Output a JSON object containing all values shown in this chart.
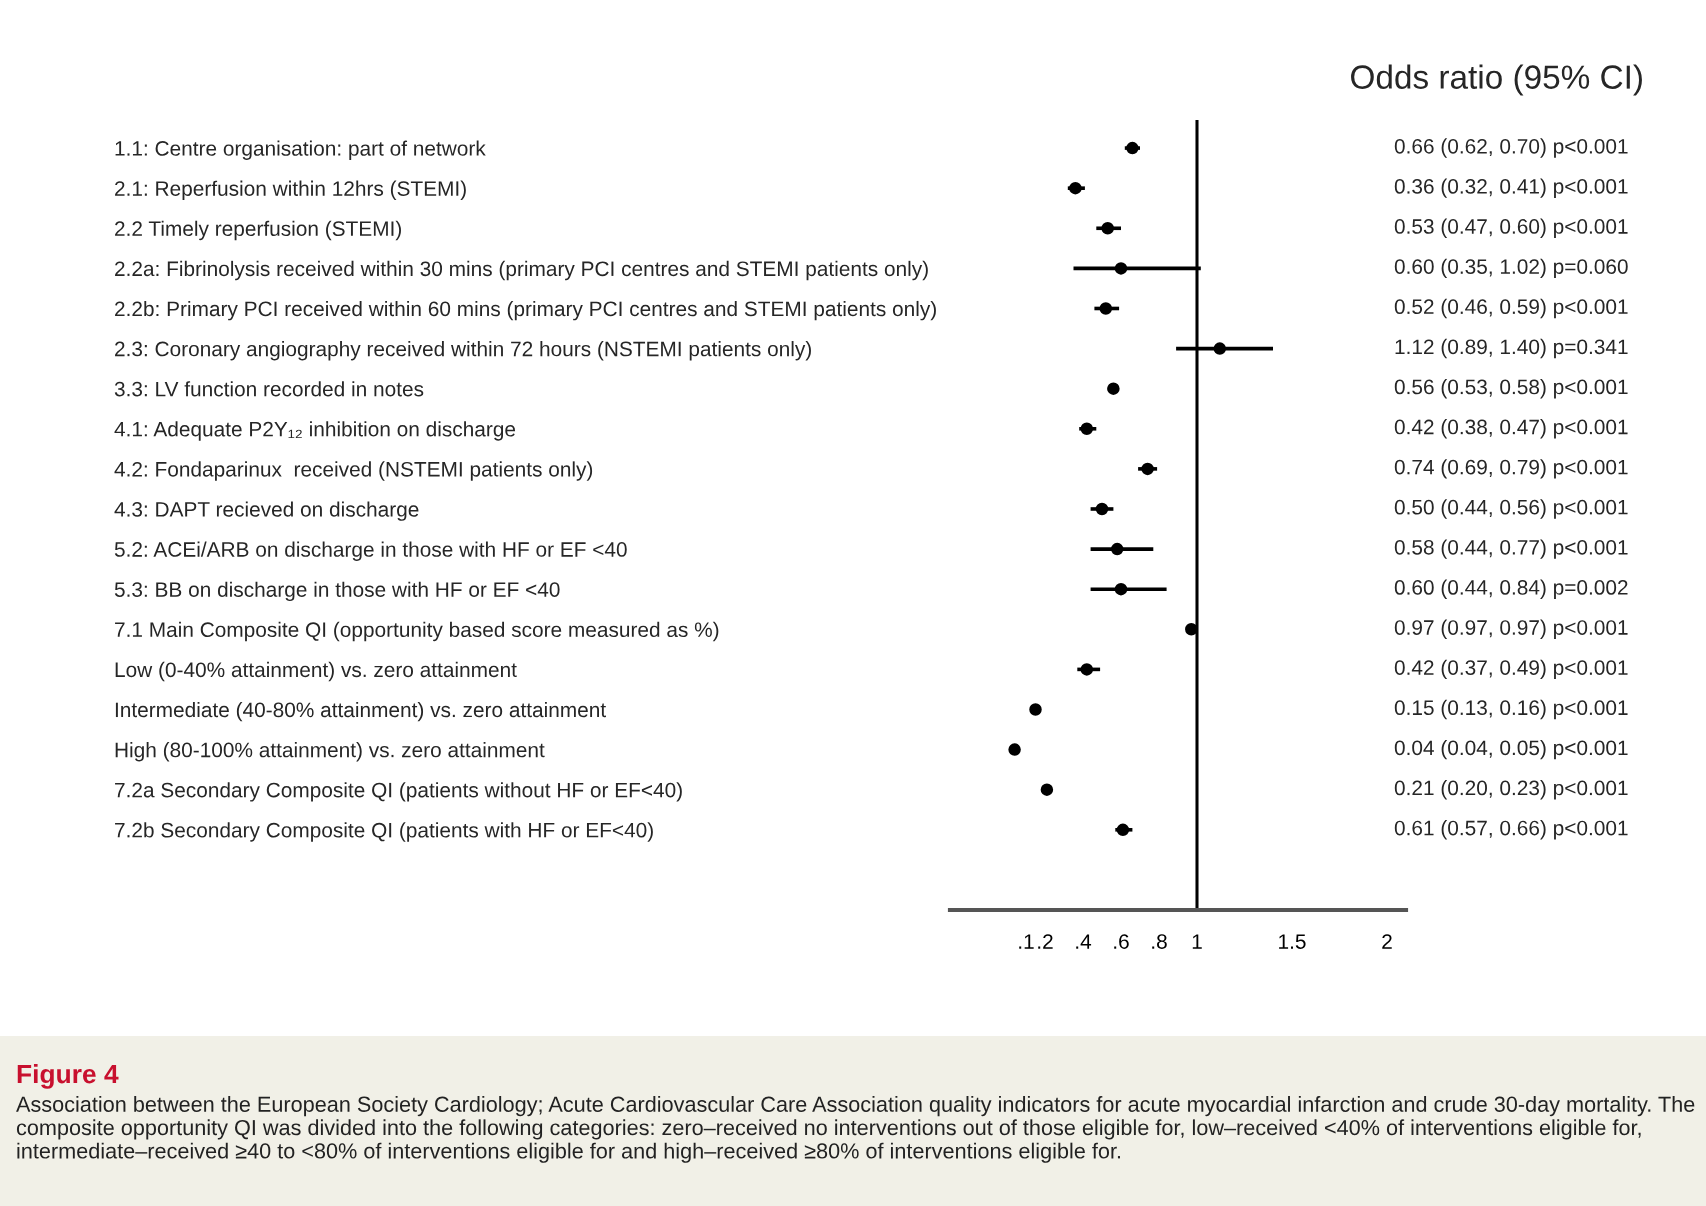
{
  "chart_data": {
    "type": "scatter",
    "orientation": "horizontal",
    "title": "Odds ratio (95% CI)",
    "categories": [
      "1.1: Centre organisation: part of network",
      "2.1: Reperfusion within 12hrs (STEMI)",
      "2.2 Timely reperfusion (STEMI)",
      "2.2a: Fibrinolysis received within 30 mins (primary PCI centres and STEMI patients only)",
      "2.2b: Primary PCI received within 60 mins (primary PCI centres and STEMI patients only)",
      "2.3: Coronary angiography received within 72 hours (NSTEMI patients only)",
      "3.3: LV function recorded in notes",
      "4.1: Adequate P2Y₁₂ inhibition on discharge",
      "4.2: Fondaparinux  received (NSTEMI patients only)",
      "4.3: DAPT recieved on discharge",
      "5.2: ACEi/ARB on discharge in those with HF or EF <40",
      "5.3: BB on discharge in those with HF or EF <40",
      "7.1 Main Composite QI (opportunity based score measured as %)",
      "Low (0-40% attainment) vs. zero attainment",
      "Intermediate (40-80% attainment) vs. zero attainment",
      "High (80-100% attainment) vs. zero attainment",
      "7.2a Secondary Composite QI (patients without HF or EF<40)",
      "7.2b Secondary Composite QI (patients with HF or EF<40)"
    ],
    "values": [
      0.66,
      0.36,
      0.53,
      0.6,
      0.52,
      1.12,
      0.56,
      0.42,
      0.74,
      0.5,
      0.58,
      0.6,
      0.97,
      0.42,
      0.15,
      0.04,
      0.21,
      0.61
    ],
    "errors": [
      [
        0.62,
        0.7
      ],
      [
        0.32,
        0.41
      ],
      [
        0.47,
        0.6
      ],
      [
        0.35,
        1.02
      ],
      [
        0.46,
        0.59
      ],
      [
        0.89,
        1.4
      ],
      [
        0.53,
        0.58
      ],
      [
        0.38,
        0.47
      ],
      [
        0.69,
        0.79
      ],
      [
        0.44,
        0.56
      ],
      [
        0.44,
        0.77
      ],
      [
        0.44,
        0.84
      ],
      [
        0.97,
        0.97
      ],
      [
        0.37,
        0.49
      ],
      [
        0.13,
        0.16
      ],
      [
        0.04,
        0.05
      ],
      [
        0.2,
        0.23
      ],
      [
        0.57,
        0.66
      ]
    ],
    "value_labels": [
      "0.66 (0.62, 0.70) p<0.001",
      "0.36 (0.32, 0.41) p<0.001",
      "0.53 (0.47, 0.60) p<0.001",
      "0.60 (0.35, 1.02) p=0.060",
      "0.52 (0.46, 0.59) p<0.001",
      "1.12 (0.89, 1.40) p=0.341",
      "0.56 (0.53, 0.58) p<0.001",
      "0.42 (0.38, 0.47) p<0.001",
      "0.74 (0.69, 0.79) p<0.001",
      "0.50 (0.44, 0.56) p<0.001",
      "0.58 (0.44, 0.77) p<0.001",
      "0.60 (0.44, 0.84) p=0.002",
      "0.97 (0.97, 0.97) p<0.001",
      "0.42 (0.37, 0.49) p<0.001",
      "0.15 (0.13, 0.16) p<0.001",
      "0.04 (0.04, 0.05) p<0.001",
      "0.21 (0.20, 0.23) p<0.001",
      "0.61 (0.57, 0.66) p<0.001"
    ],
    "color": "#000000",
    "marker": "circle",
    "grid": false,
    "xlim": [
      -0.3,
      2.1
    ],
    "xticks": [
      {
        "value": 0.1,
        "label": ".1"
      },
      {
        "value": 0.2,
        "label": ".2"
      },
      {
        "value": 0.4,
        "label": ".4"
      },
      {
        "value": 0.6,
        "label": ".6"
      },
      {
        "value": 0.8,
        "label": ".8"
      },
      1,
      1.5,
      2
    ],
    "ref_lines": [
      {
        "axis": "x",
        "value": 1,
        "color": "#000000"
      }
    ],
    "annotations": [
      "Figure 4",
      "Association between the European Society Cardiology; Acute Cardiovascular Care Association quality indicators for acute myocardial infarction and crude 30-day mortality. The composite opportunity QI was divided into the following categories: zero–received no interventions out of those eligible for, low–received <40% of interventions eligible for, intermediate–received ≥40 to <80% of interventions eligible for and high–received ≥80% of interventions eligible for."
    ]
  }
}
